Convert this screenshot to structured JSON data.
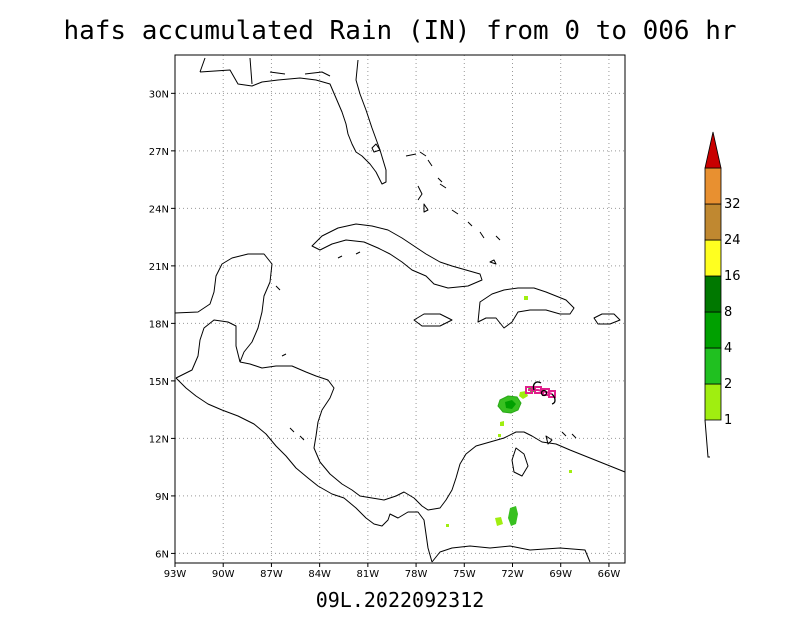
{
  "title": "hafs accumulated Rain (IN) from 0 to 006 hr",
  "footer": "09L.2022092312",
  "map": {
    "lon_range": [
      -93,
      -65
    ],
    "lat_range": [
      5.5,
      32
    ],
    "lon_ticks": [
      {
        "lon": -93,
        "label": "93W"
      },
      {
        "lon": -90,
        "label": "90W"
      },
      {
        "lon": -87,
        "label": "87W"
      },
      {
        "lon": -84,
        "label": "84W"
      },
      {
        "lon": -81,
        "label": "81W"
      },
      {
        "lon": -78,
        "label": "78W"
      },
      {
        "lon": -75,
        "label": "75W"
      },
      {
        "lon": -72,
        "label": "72W"
      },
      {
        "lon": -69,
        "label": "69W"
      },
      {
        "lon": -66,
        "label": "66W"
      }
    ],
    "lat_ticks": [
      {
        "lat": 30,
        "label": "30N"
      },
      {
        "lat": 27,
        "label": "27N"
      },
      {
        "lat": 24,
        "label": "24N"
      },
      {
        "lat": 21,
        "label": "21N"
      },
      {
        "lat": 18,
        "label": "18N"
      },
      {
        "lat": 15,
        "label": "15N"
      },
      {
        "lat": 12,
        "label": "12N"
      },
      {
        "lat": 9,
        "label": "9N"
      },
      {
        "lat": 6,
        "label": "6N"
      }
    ],
    "grid": "dotted",
    "storm_track_color": "#e0208c",
    "storm_symbol": "hurricane-symbol-icon"
  },
  "colorbar": {
    "levels": [
      "1",
      "2",
      "4",
      "8",
      "16",
      "24",
      "32"
    ],
    "colors": [
      "#a0ee10",
      "#20c020",
      "#00a000",
      "#007800",
      "#ffff20",
      "#c08830",
      "#e89030",
      "#c80000"
    ]
  }
}
